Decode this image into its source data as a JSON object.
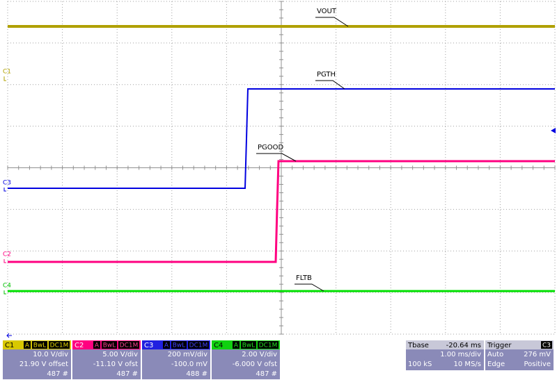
{
  "traces": [
    {
      "label": "VOUT"
    },
    {
      "label": "PGTH"
    },
    {
      "label": "PGOOD"
    },
    {
      "label": "FLTB"
    }
  ],
  "markers": [
    "C1",
    "C3",
    "C2",
    "C4"
  ],
  "channels": [
    {
      "name": "C1",
      "badges": [
        "A",
        "BwL",
        "DC1M"
      ],
      "scale": "10.0 V/div",
      "offset": "21.90 V offset",
      "count": "487 #"
    },
    {
      "name": "C2",
      "badges": [
        "A",
        "BwL",
        "DC1M"
      ],
      "scale": "5.00 V/div",
      "offset": "-11.10 V ofst",
      "count": "487 #"
    },
    {
      "name": "C3",
      "badges": [
        "A",
        "BwL",
        "DC1M"
      ],
      "scale": "200 mV/div",
      "offset": "-100.0 mV",
      "count": "488 #"
    },
    {
      "name": "C4",
      "badges": [
        "A",
        "BwL",
        "DC1M"
      ],
      "scale": "2.00 V/div",
      "offset": "-6.000 V ofst",
      "count": "487 #"
    }
  ],
  "timebase": {
    "title": "Tbase",
    "delay": "-20.64 ms",
    "scale": "1.00 ms/div",
    "samples": "100 kS",
    "rate": "10 MS/s"
  },
  "trigger": {
    "title": "Trigger",
    "source": "C3",
    "mode": "Auto",
    "level": "276 mV",
    "type": "Edge",
    "slope": "Positive"
  }
}
